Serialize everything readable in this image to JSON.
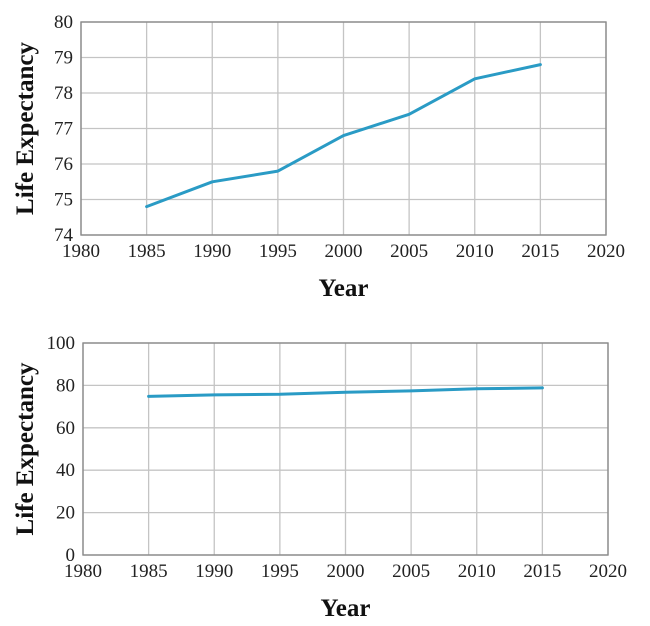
{
  "chart_data": [
    {
      "type": "line",
      "title": "",
      "xlabel": "Year",
      "ylabel": "Life Expectancy",
      "xlim": [
        1980,
        2020
      ],
      "ylim": [
        74,
        80
      ],
      "x_ticks": [
        "1980",
        "1985",
        "1990",
        "1995",
        "2000",
        "2005",
        "2010",
        "2015",
        "2020"
      ],
      "y_ticks": [
        "74",
        "75",
        "76",
        "77",
        "78",
        "79",
        "80"
      ],
      "grid": true,
      "line_color": "#2a9bc5",
      "series": [
        {
          "name": "Life Expectancy",
          "x": [
            1985,
            1990,
            1995,
            2000,
            2005,
            2010,
            2015
          ],
          "values": [
            74.8,
            75.5,
            75.8,
            76.8,
            77.4,
            78.4,
            78.8
          ]
        }
      ]
    },
    {
      "type": "line",
      "title": "",
      "xlabel": "Year",
      "ylabel": "Life Expectancy",
      "xlim": [
        1980,
        2020
      ],
      "ylim": [
        0,
        100
      ],
      "x_ticks": [
        "1980",
        "1985",
        "1990",
        "1995",
        "2000",
        "2005",
        "2010",
        "2015",
        "2020"
      ],
      "y_ticks": [
        "0",
        "20",
        "40",
        "60",
        "80",
        "100"
      ],
      "grid": true,
      "line_color": "#2a9bc5",
      "series": [
        {
          "name": "Life Expectancy",
          "x": [
            1985,
            1990,
            1995,
            2000,
            2005,
            2010,
            2015
          ],
          "values": [
            74.8,
            75.5,
            75.8,
            76.8,
            77.4,
            78.4,
            78.8
          ]
        }
      ]
    }
  ]
}
